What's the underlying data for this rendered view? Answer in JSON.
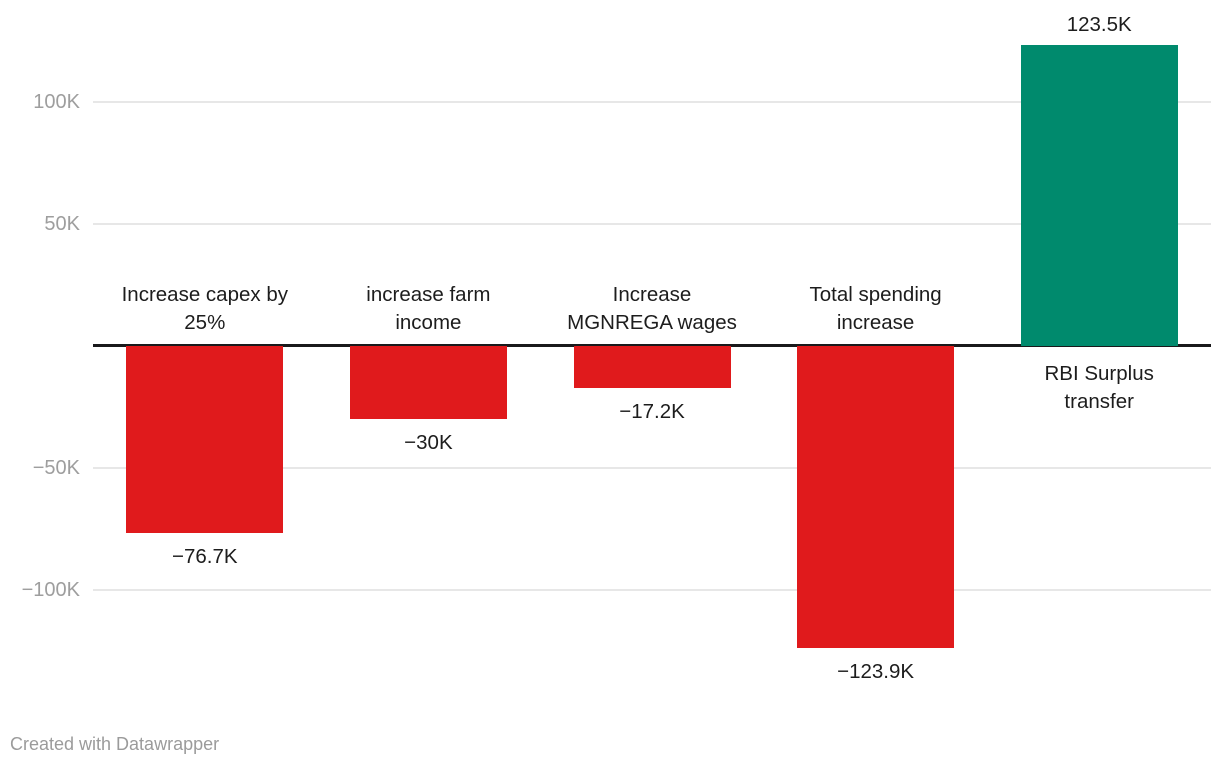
{
  "chart_data": {
    "type": "bar",
    "title": "",
    "xlabel": "",
    "ylabel": "",
    "categories": [
      "Increase capex by 25%",
      "increase farm income",
      "Increase MGNREGA wages",
      "Total spending increase",
      "RBI Surplus transfer"
    ],
    "category_lines": [
      [
        "Increase capex by",
        "25%"
      ],
      [
        "increase farm",
        "income"
      ],
      [
        "Increase",
        "MGNREGA wages"
      ],
      [
        "Total spending",
        "increase"
      ],
      [
        "RBI Surplus",
        "transfer"
      ]
    ],
    "values": [
      -76700,
      -30000,
      -17200,
      -123900,
      123500
    ],
    "value_labels": [
      "−76.7K",
      "−30K",
      "−17.2K",
      "−123.9K",
      "123.5K"
    ],
    "ticks": [
      {
        "label": "100K",
        "value": 100000
      },
      {
        "label": "50K",
        "value": 50000
      },
      {
        "label": "−50K",
        "value": -50000
      },
      {
        "label": "−100K",
        "value": -100000
      }
    ],
    "ylim": [
      -140000,
      140000
    ],
    "grid": true,
    "legend": "none",
    "colors": {
      "positive": "#008a6d",
      "negative": "#e01a1c",
      "gridline": "#e7e7e7",
      "baseline": "#19191b",
      "tick_text": "#9e9e9e",
      "label_text": "#1d1d1d"
    }
  },
  "footer": {
    "credit": "Created with Datawrapper"
  }
}
